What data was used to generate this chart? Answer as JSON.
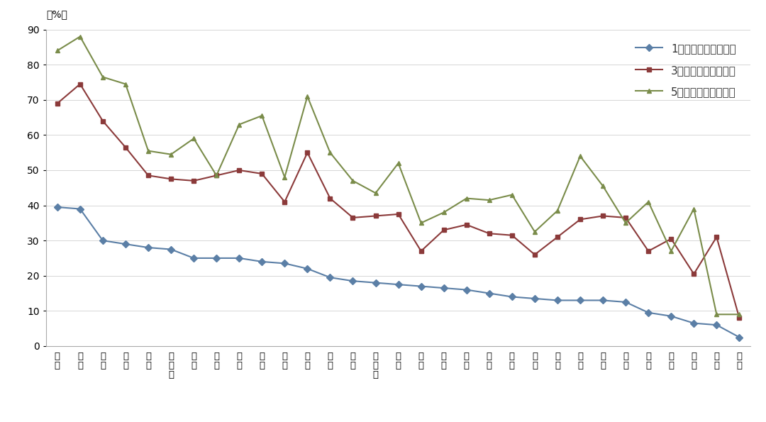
{
  "categories": [
    "天\n津",
    "北\n京",
    "上\n海",
    "安\n徽",
    "辽\n宁",
    "黑\n龙\n江",
    "新\n疆",
    "宁\n夏",
    "重\n庆",
    "陕\n西",
    "云\n南",
    "江\n苏",
    "江\n西",
    "湖\n北",
    "内\n蒙\n古",
    "甘\n肃",
    "贵\n州",
    "吉\n林",
    "福\n建",
    "青\n海",
    "河\n北",
    "四\n川",
    "山\n西",
    "山\n东",
    "广\n西",
    "广\n东",
    "浙\n江",
    "河\n南",
    "湖\n南",
    "海\n南",
    "西\n藏"
  ],
  "series_1km": [
    39.5,
    39,
    30,
    29,
    28,
    27.5,
    25,
    25,
    25,
    24,
    23.5,
    22,
    19.5,
    18.5,
    18,
    17.5,
    17,
    16.5,
    16,
    15,
    14,
    13.5,
    13,
    13,
    13,
    12.5,
    9.5,
    8.5,
    6.5,
    6,
    2.5
  ],
  "series_3km": [
    69,
    74.5,
    64,
    56.5,
    48.5,
    47.5,
    47,
    48.5,
    50,
    49,
    41,
    55,
    42,
    36.5,
    37,
    37.5,
    27,
    33,
    34.5,
    32,
    31.5,
    26,
    31,
    36,
    37,
    36.5,
    27,
    30.5,
    20.5,
    31,
    8
  ],
  "series_5km": [
    84,
    88,
    76.5,
    74.5,
    55.5,
    54.5,
    59,
    48.5,
    63,
    65.5,
    48,
    71,
    55,
    47,
    43.5,
    52,
    35,
    38,
    42,
    41.5,
    43,
    32.5,
    38.5,
    54,
    45.5,
    35,
    41,
    27,
    39,
    9,
    9
  ],
  "legend_labels": [
    "1千米半径服务覆盖率",
    "3千米半径服务覆盖率",
    "5千米半径服务覆盖率"
  ],
  "ylabel": "（%）",
  "color_1km": "#5b7fa6",
  "color_3km": "#8b3a3a",
  "color_5km": "#7a8c4a",
  "ylim": [
    0,
    90
  ],
  "yticks": [
    0,
    10,
    20,
    30,
    40,
    50,
    60,
    70,
    80,
    90
  ],
  "background_color": "#ffffff",
  "line_width": 1.5,
  "marker_size": 5
}
